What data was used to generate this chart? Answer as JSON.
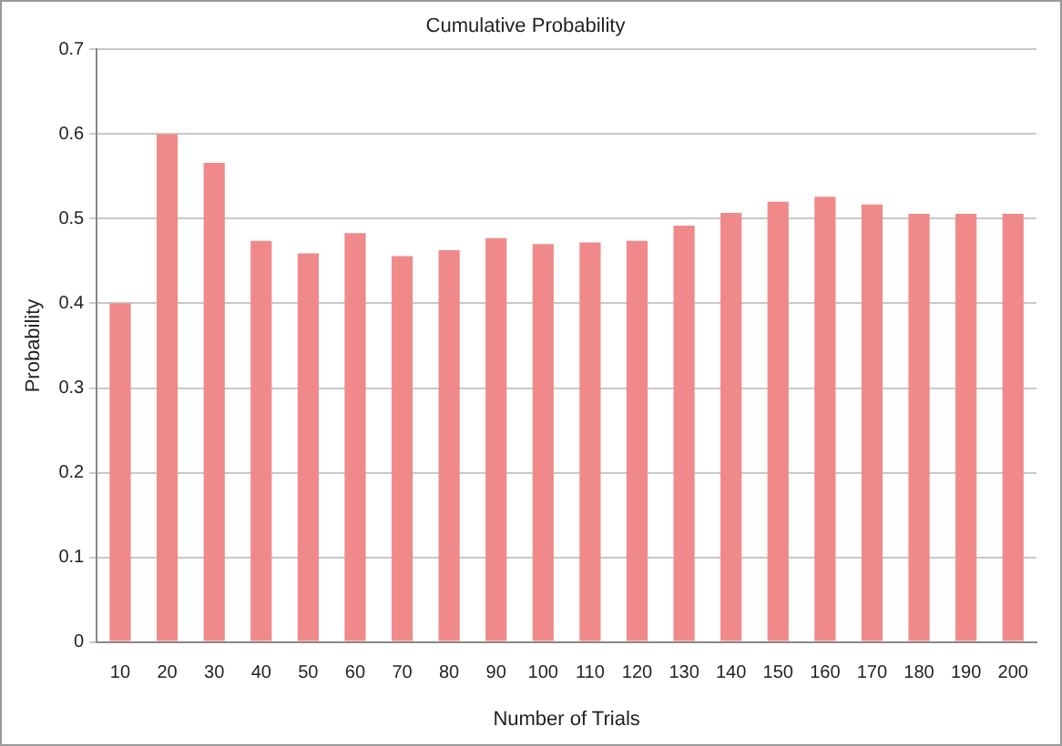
{
  "chart_data": {
    "type": "bar",
    "title": "Cumulative Probability",
    "xlabel": "Number of Trials",
    "ylabel": "Probability",
    "categories": [
      "10",
      "20",
      "30",
      "40",
      "50",
      "60",
      "70",
      "80",
      "90",
      "100",
      "110",
      "120",
      "130",
      "140",
      "150",
      "160",
      "170",
      "180",
      "190",
      "200"
    ],
    "values": [
      0.4,
      0.6,
      0.566,
      0.474,
      0.459,
      0.483,
      0.456,
      0.463,
      0.477,
      0.47,
      0.472,
      0.474,
      0.492,
      0.507,
      0.52,
      0.526,
      0.517,
      0.506,
      0.506,
      0.506
    ],
    "color": "#f08a8a",
    "ylim": [
      0,
      0.7
    ],
    "yticks": [
      0,
      0.1,
      0.2,
      0.3,
      0.4,
      0.5,
      0.6,
      0.7
    ],
    "grid": "y"
  }
}
